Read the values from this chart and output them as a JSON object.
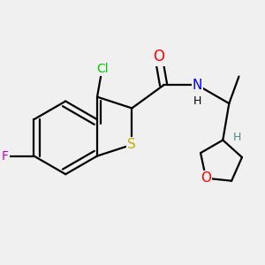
{
  "background_color": "#f0f0f0",
  "atom_colors": {
    "C": "#000000",
    "H": "#808080",
    "N": "#0000ff",
    "O": "#ff0000",
    "S": "#ccaa00",
    "F": "#cc00cc",
    "Cl": "#00cc00"
  },
  "bond_color": "#000000",
  "bond_width": 1.6,
  "font_size": 10,
  "fig_size": [
    3.0,
    3.0
  ],
  "dpi": 100
}
